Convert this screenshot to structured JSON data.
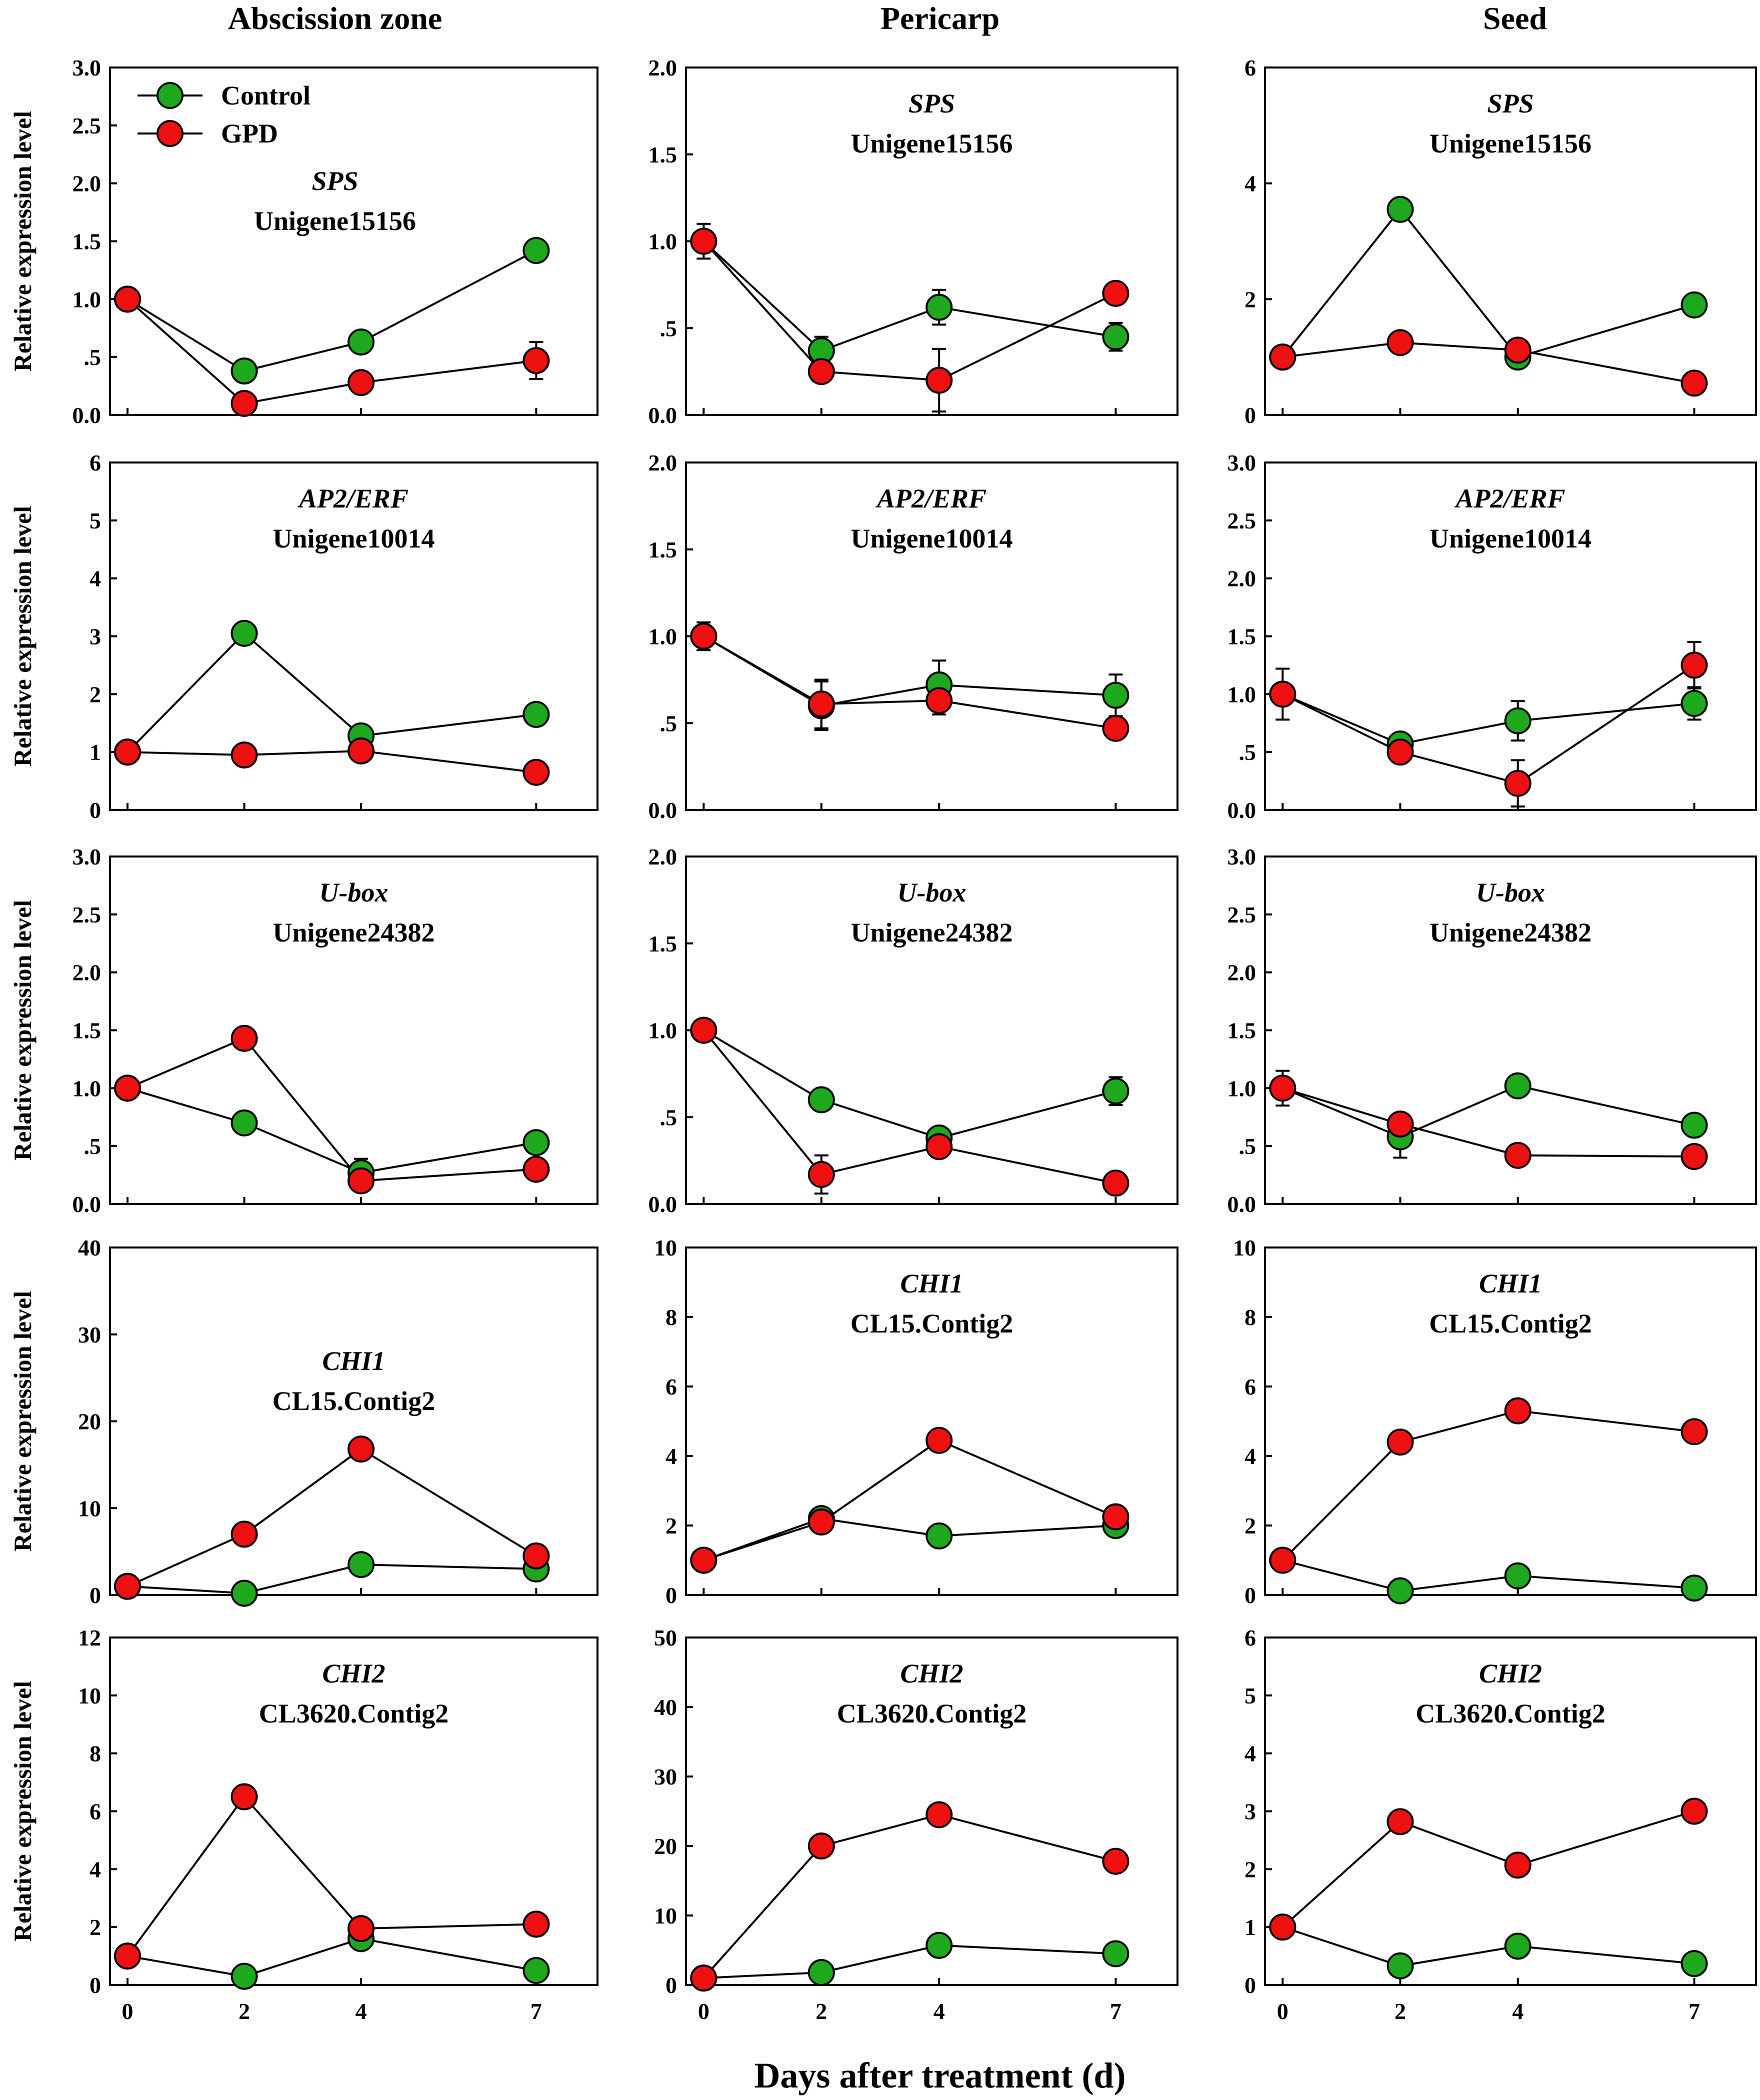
{
  "columns": [
    "Abscission zone",
    "Pericarp",
    "Seed"
  ],
  "ylabel": "Relative expression level",
  "xlabel": "Days after treatment (d)",
  "x_ticks": [
    "0",
    "2",
    "4",
    "7"
  ],
  "legend": [
    {
      "name": "Control",
      "color": "#1ea81e"
    },
    {
      "name": "GPD",
      "color": "#ee1111"
    }
  ],
  "chart_data": [
    {
      "type": "line",
      "row": 0,
      "col": 0,
      "gene": "SPS",
      "unigene": "Unigene15156",
      "x": [
        0,
        2,
        4,
        7
      ],
      "ylim": [
        0,
        3
      ],
      "yticks": [
        0,
        0.5,
        1,
        1.5,
        2,
        2.5,
        3
      ],
      "ytick_labels": [
        "0.0",
        ".5",
        "1.0",
        "1.5",
        "2.0",
        "2.5",
        "3.0"
      ],
      "series": [
        {
          "name": "Control",
          "values": [
            1.0,
            0.38,
            0.63,
            1.42
          ],
          "err": [
            0.03,
            0.03,
            0.04,
            0.07
          ]
        },
        {
          "name": "GPD",
          "values": [
            1.0,
            0.1,
            0.28,
            0.47
          ],
          "err": [
            0.03,
            0.03,
            0.04,
            0.16
          ]
        }
      ]
    },
    {
      "type": "line",
      "row": 0,
      "col": 1,
      "gene": "SPS",
      "unigene": "Unigene15156",
      "x": [
        0,
        2,
        4,
        7
      ],
      "ylim": [
        0,
        2
      ],
      "yticks": [
        0,
        0.5,
        1,
        1.5,
        2
      ],
      "ytick_labels": [
        "0.0",
        ".5",
        "1.0",
        "1.5",
        "2.0"
      ],
      "series": [
        {
          "name": "Control",
          "values": [
            1.0,
            0.37,
            0.62,
            0.45
          ],
          "err": [
            0.05,
            0.08,
            0.1,
            0.08
          ]
        },
        {
          "name": "GPD",
          "values": [
            1.0,
            0.25,
            0.2,
            0.7
          ],
          "err": [
            0.1,
            0.03,
            0.18,
            0.07
          ]
        }
      ]
    },
    {
      "type": "line",
      "row": 0,
      "col": 2,
      "gene": "SPS",
      "unigene": "Unigene15156",
      "x": [
        0,
        2,
        4,
        7
      ],
      "ylim": [
        0,
        6
      ],
      "yticks": [
        0,
        2,
        4,
        6
      ],
      "ytick_labels": [
        "0",
        "2",
        "4",
        "6"
      ],
      "series": [
        {
          "name": "Control",
          "values": [
            1.0,
            3.55,
            1.0,
            1.9
          ],
          "err": [
            0.05,
            0.05,
            0.05,
            0.05
          ]
        },
        {
          "name": "GPD",
          "values": [
            1.0,
            1.25,
            1.12,
            0.55
          ],
          "err": [
            0.05,
            0.05,
            0.05,
            0.05
          ]
        }
      ]
    },
    {
      "type": "line",
      "row": 1,
      "col": 0,
      "gene": "AP2/ERF",
      "unigene": "Unigene10014",
      "x": [
        0,
        2,
        4,
        7
      ],
      "ylim": [
        0,
        6
      ],
      "yticks": [
        0,
        1,
        2,
        3,
        4,
        5,
        6
      ],
      "ytick_labels": [
        "0",
        "1",
        "2",
        "3",
        "4",
        "5",
        "6"
      ],
      "series": [
        {
          "name": "Control",
          "values": [
            1.0,
            3.05,
            1.28,
            1.65
          ],
          "err": [
            0.05,
            0.05,
            0.05,
            0.05
          ]
        },
        {
          "name": "GPD",
          "values": [
            1.0,
            0.95,
            1.02,
            0.65
          ],
          "err": [
            0.05,
            0.05,
            0.05,
            0.05
          ]
        }
      ]
    },
    {
      "type": "line",
      "row": 1,
      "col": 1,
      "gene": "AP2/ERF",
      "unigene": "Unigene10014",
      "x": [
        0,
        2,
        4,
        7
      ],
      "ylim": [
        0,
        2
      ],
      "yticks": [
        0,
        0.5,
        1,
        1.5,
        2
      ],
      "ytick_labels": [
        "0.0",
        ".5",
        "1.0",
        "1.5",
        "2.0"
      ],
      "series": [
        {
          "name": "Control",
          "values": [
            1.0,
            0.6,
            0.72,
            0.66
          ],
          "err": [
            0.05,
            0.14,
            0.14,
            0.12
          ]
        },
        {
          "name": "GPD",
          "values": [
            1.0,
            0.61,
            0.63,
            0.47
          ],
          "err": [
            0.08,
            0.14,
            0.08,
            0.06
          ]
        }
      ]
    },
    {
      "type": "line",
      "row": 1,
      "col": 2,
      "gene": "AP2/ERF",
      "unigene": "Unigene10014",
      "x": [
        0,
        2,
        4,
        7
      ],
      "ylim": [
        0,
        3
      ],
      "yticks": [
        0,
        0.5,
        1,
        1.5,
        2,
        2.5,
        3
      ],
      "ytick_labels": [
        "0.0",
        ".5",
        "1.0",
        "1.5",
        "2.0",
        "2.5",
        "3.0"
      ],
      "series": [
        {
          "name": "Control",
          "values": [
            1.0,
            0.57,
            0.77,
            0.92
          ],
          "err": [
            0.05,
            0.1,
            0.17,
            0.14
          ]
        },
        {
          "name": "GPD",
          "values": [
            1.0,
            0.5,
            0.23,
            1.25
          ],
          "err": [
            0.22,
            0.08,
            0.2,
            0.2
          ]
        }
      ]
    },
    {
      "type": "line",
      "row": 2,
      "col": 0,
      "gene": "U-box",
      "unigene": "Unigene24382",
      "x": [
        0,
        2,
        4,
        7
      ],
      "ylim": [
        0,
        3
      ],
      "yticks": [
        0,
        0.5,
        1,
        1.5,
        2,
        2.5,
        3
      ],
      "ytick_labels": [
        "0.0",
        ".5",
        "1.0",
        "1.5",
        "2.0",
        "2.5",
        "3.0"
      ],
      "series": [
        {
          "name": "Control",
          "values": [
            1.0,
            0.7,
            0.27,
            0.53
          ],
          "err": [
            0.05,
            0.05,
            0.12,
            0.05
          ]
        },
        {
          "name": "GPD",
          "values": [
            1.0,
            1.43,
            0.2,
            0.3
          ],
          "err": [
            0.05,
            0.05,
            0.05,
            0.05
          ]
        }
      ]
    },
    {
      "type": "line",
      "row": 2,
      "col": 1,
      "gene": "U-box",
      "unigene": "Unigene24382",
      "x": [
        0,
        2,
        4,
        7
      ],
      "ylim": [
        0,
        2
      ],
      "yticks": [
        0,
        0.5,
        1,
        1.5,
        2
      ],
      "ytick_labels": [
        "0.0",
        ".5",
        "1.0",
        "1.5",
        "2.0"
      ],
      "series": [
        {
          "name": "Control",
          "values": [
            1.0,
            0.6,
            0.38,
            0.65
          ],
          "err": [
            0.03,
            0.04,
            0.05,
            0.08
          ]
        },
        {
          "name": "GPD",
          "values": [
            1.0,
            0.17,
            0.33,
            0.12
          ],
          "err": [
            0.03,
            0.11,
            0.06,
            0.03
          ]
        }
      ]
    },
    {
      "type": "line",
      "row": 2,
      "col": 2,
      "gene": "U-box",
      "unigene": "Unigene24382",
      "x": [
        0,
        2,
        4,
        7
      ],
      "ylim": [
        0,
        3
      ],
      "yticks": [
        0,
        0.5,
        1,
        1.5,
        2,
        2.5,
        3
      ],
      "ytick_labels": [
        "0.0",
        ".5",
        "1.0",
        "1.5",
        "2.0",
        "2.5",
        "3.0"
      ],
      "series": [
        {
          "name": "Control",
          "values": [
            1.0,
            0.58,
            1.02,
            0.68
          ],
          "err": [
            0.15,
            0.18,
            0.1,
            0.1
          ]
        },
        {
          "name": "GPD",
          "values": [
            1.0,
            0.69,
            0.42,
            0.41
          ],
          "err": [
            0.07,
            0.06,
            0.1,
            0.1
          ]
        }
      ]
    },
    {
      "type": "line",
      "row": 3,
      "col": 0,
      "gene": "CHI1",
      "unigene": "CL15.Contig2",
      "x": [
        0,
        2,
        4,
        7
      ],
      "ylim": [
        0,
        40
      ],
      "yticks": [
        0,
        10,
        20,
        30,
        40
      ],
      "ytick_labels": [
        "0",
        "10",
        "20",
        "30",
        "40"
      ],
      "series": [
        {
          "name": "Control",
          "values": [
            1.0,
            0.2,
            3.5,
            3.0
          ],
          "err": [
            0.3,
            0.3,
            0.3,
            0.3
          ]
        },
        {
          "name": "GPD",
          "values": [
            1.0,
            7.0,
            16.8,
            4.5
          ],
          "err": [
            0.3,
            0.3,
            0.3,
            0.3
          ]
        }
      ]
    },
    {
      "type": "line",
      "row": 3,
      "col": 1,
      "gene": "CHI1",
      "unigene": "CL15.Contig2",
      "x": [
        0,
        2,
        4,
        7
      ],
      "ylim": [
        0,
        10
      ],
      "yticks": [
        0,
        2,
        4,
        6,
        8,
        10
      ],
      "ytick_labels": [
        "0",
        "2",
        "4",
        "6",
        "8",
        "10"
      ],
      "series": [
        {
          "name": "Control",
          "values": [
            1.0,
            2.2,
            1.7,
            2.0
          ],
          "err": [
            0.1,
            0.1,
            0.1,
            0.1
          ]
        },
        {
          "name": "GPD",
          "values": [
            1.0,
            2.1,
            4.45,
            2.25
          ],
          "err": [
            0.1,
            0.1,
            0.1,
            0.1
          ]
        }
      ]
    },
    {
      "type": "line",
      "row": 3,
      "col": 2,
      "gene": "CHI1",
      "unigene": "CL15.Contig2",
      "x": [
        0,
        2,
        4,
        7
      ],
      "ylim": [
        0,
        10
      ],
      "yticks": [
        0,
        2,
        4,
        6,
        8,
        10
      ],
      "ytick_labels": [
        "0",
        "2",
        "4",
        "6",
        "8",
        "10"
      ],
      "series": [
        {
          "name": "Control",
          "values": [
            1.0,
            0.12,
            0.55,
            0.2
          ],
          "err": [
            0.1,
            0.1,
            0.1,
            0.1
          ]
        },
        {
          "name": "GPD",
          "values": [
            1.0,
            4.4,
            5.3,
            4.7
          ],
          "err": [
            0.1,
            0.1,
            0.1,
            0.1
          ]
        }
      ]
    },
    {
      "type": "line",
      "row": 4,
      "col": 0,
      "gene": "CHI2",
      "unigene": "CL3620.Contig2",
      "x": [
        0,
        2,
        4,
        7
      ],
      "ylim": [
        0,
        12
      ],
      "yticks": [
        0,
        2,
        4,
        6,
        8,
        10,
        12
      ],
      "ytick_labels": [
        "0",
        "2",
        "4",
        "6",
        "8",
        "10",
        "12"
      ],
      "series": [
        {
          "name": "Control",
          "values": [
            1.0,
            0.3,
            1.6,
            0.5
          ],
          "err": [
            0.1,
            0.1,
            0.1,
            0.1
          ]
        },
        {
          "name": "GPD",
          "values": [
            1.0,
            6.5,
            1.95,
            2.1
          ],
          "err": [
            0.1,
            0.1,
            0.1,
            0.1
          ]
        }
      ]
    },
    {
      "type": "line",
      "row": 4,
      "col": 1,
      "gene": "CHI2",
      "unigene": "CL3620.Contig2",
      "x": [
        0,
        2,
        4,
        7
      ],
      "ylim": [
        0,
        50
      ],
      "yticks": [
        0,
        10,
        20,
        30,
        40,
        50
      ],
      "ytick_labels": [
        "0",
        "10",
        "20",
        "30",
        "40",
        "50"
      ],
      "series": [
        {
          "name": "Control",
          "values": [
            1.0,
            1.8,
            5.7,
            4.5
          ],
          "err": [
            0.3,
            0.3,
            0.3,
            0.3
          ]
        },
        {
          "name": "GPD",
          "values": [
            1.0,
            20.0,
            24.5,
            17.8
          ],
          "err": [
            0.3,
            0.3,
            0.3,
            0.3
          ]
        }
      ]
    },
    {
      "type": "line",
      "row": 4,
      "col": 2,
      "gene": "CHI2",
      "unigene": "CL3620.Contig2",
      "x": [
        0,
        2,
        4,
        7
      ],
      "ylim": [
        0,
        6
      ],
      "yticks": [
        0,
        1,
        2,
        3,
        4,
        5,
        6
      ],
      "ytick_labels": [
        "0",
        "1",
        "2",
        "3",
        "4",
        "5",
        "6"
      ],
      "series": [
        {
          "name": "Control",
          "values": [
            1.0,
            0.33,
            0.67,
            0.37
          ],
          "err": [
            0.05,
            0.05,
            0.05,
            0.05
          ]
        },
        {
          "name": "GPD",
          "values": [
            1.0,
            2.82,
            2.07,
            3.0
          ],
          "err": [
            0.05,
            0.05,
            0.05,
            0.05
          ]
        }
      ]
    }
  ]
}
